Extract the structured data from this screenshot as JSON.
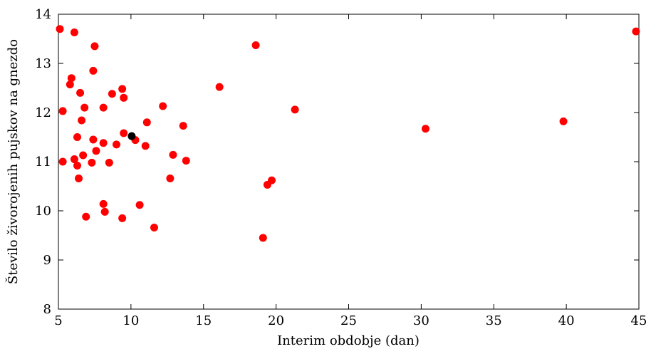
{
  "chart_data": {
    "type": "scatter",
    "xlabel": "Interim obdobje (dan)",
    "ylabel": "Število živorojenih pujskov na gnezdo",
    "xlim": [
      5,
      45
    ],
    "ylim": [
      8,
      14
    ],
    "x_ticks": [
      5,
      10,
      15,
      20,
      25,
      30,
      35,
      40,
      45
    ],
    "y_ticks": [
      8,
      9,
      10,
      11,
      12,
      13,
      14
    ],
    "grid": false,
    "series": [
      {
        "color": "#ff0000",
        "points": [
          {
            "x": 5.1,
            "y": 13.7
          },
          {
            "x": 6.1,
            "y": 13.63
          },
          {
            "x": 7.5,
            "y": 13.35
          },
          {
            "x": 7.4,
            "y": 12.85
          },
          {
            "x": 5.9,
            "y": 12.7
          },
          {
            "x": 5.8,
            "y": 12.57
          },
          {
            "x": 6.5,
            "y": 12.4
          },
          {
            "x": 8.7,
            "y": 12.38
          },
          {
            "x": 9.4,
            "y": 12.48
          },
          {
            "x": 9.5,
            "y": 12.3
          },
          {
            "x": 5.3,
            "y": 12.03
          },
          {
            "x": 6.8,
            "y": 12.1
          },
          {
            "x": 8.1,
            "y": 12.1
          },
          {
            "x": 6.6,
            "y": 11.84
          },
          {
            "x": 11.1,
            "y": 11.8
          },
          {
            "x": 12.2,
            "y": 12.13
          },
          {
            "x": 13.6,
            "y": 11.73
          },
          {
            "x": 6.3,
            "y": 11.5
          },
          {
            "x": 9.5,
            "y": 11.58
          },
          {
            "x": 7.4,
            "y": 11.45
          },
          {
            "x": 8.1,
            "y": 11.38
          },
          {
            "x": 10.3,
            "y": 11.44
          },
          {
            "x": 9.0,
            "y": 11.35
          },
          {
            "x": 11.0,
            "y": 11.32
          },
          {
            "x": 7.6,
            "y": 11.22
          },
          {
            "x": 6.7,
            "y": 11.13
          },
          {
            "x": 12.9,
            "y": 11.14
          },
          {
            "x": 6.1,
            "y": 11.05
          },
          {
            "x": 5.3,
            "y": 11.0
          },
          {
            "x": 7.3,
            "y": 10.98
          },
          {
            "x": 8.5,
            "y": 10.98
          },
          {
            "x": 13.8,
            "y": 11.02
          },
          {
            "x": 6.3,
            "y": 10.92
          },
          {
            "x": 6.4,
            "y": 10.66
          },
          {
            "x": 12.7,
            "y": 10.66
          },
          {
            "x": 8.1,
            "y": 10.14
          },
          {
            "x": 10.6,
            "y": 10.12
          },
          {
            "x": 8.2,
            "y": 9.98
          },
          {
            "x": 6.9,
            "y": 9.88
          },
          {
            "x": 9.4,
            "y": 9.85
          },
          {
            "x": 11.6,
            "y": 9.66
          },
          {
            "x": 16.1,
            "y": 12.52
          },
          {
            "x": 18.6,
            "y": 13.37
          },
          {
            "x": 21.3,
            "y": 12.06
          },
          {
            "x": 19.7,
            "y": 10.62
          },
          {
            "x": 19.4,
            "y": 10.53
          },
          {
            "x": 19.1,
            "y": 9.45
          },
          {
            "x": 30.3,
            "y": 11.67
          },
          {
            "x": 39.8,
            "y": 11.82
          },
          {
            "x": 44.8,
            "y": 13.65
          }
        ]
      },
      {
        "color": "#000000",
        "points": [
          {
            "x": 10.05,
            "y": 11.52
          }
        ]
      }
    ]
  }
}
